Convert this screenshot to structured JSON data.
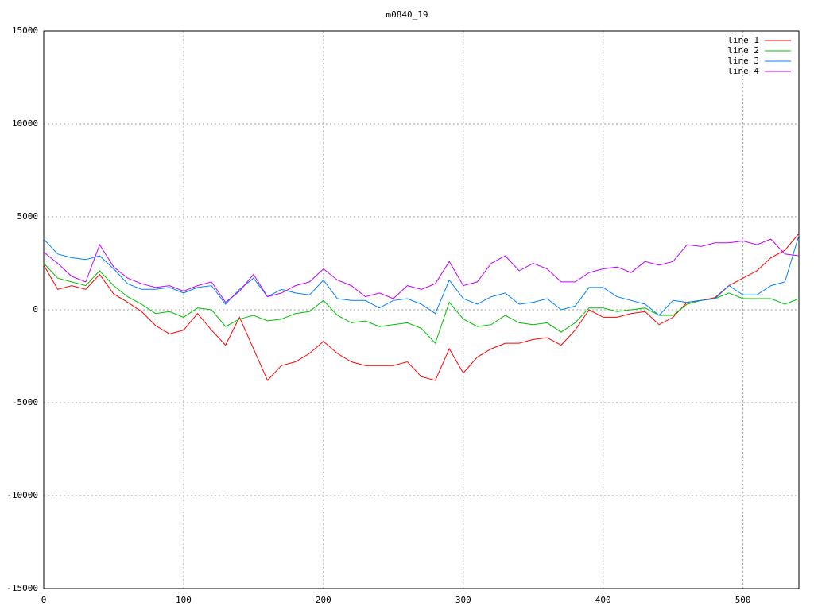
{
  "chart_data": {
    "type": "line",
    "title": "m0840_19",
    "x": [
      0,
      10,
      20,
      30,
      40,
      50,
      60,
      70,
      80,
      90,
      100,
      110,
      120,
      130,
      140,
      150,
      160,
      170,
      180,
      190,
      200,
      210,
      220,
      230,
      240,
      250,
      260,
      270,
      280,
      290,
      300,
      310,
      320,
      330,
      340,
      350,
      360,
      370,
      380,
      390,
      400,
      410,
      420,
      430,
      440,
      450,
      460,
      470,
      480,
      490,
      500,
      510,
      520,
      530,
      540
    ],
    "series": [
      {
        "name": "line 1",
        "color": "#ff0000",
        "values": [
          2400,
          1100,
          1300,
          1100,
          1900,
          850,
          400,
          -100,
          -850,
          -1300,
          -1100,
          -200,
          -1100,
          -1900,
          -400,
          -2100,
          -3800,
          -3000,
          -2800,
          -2350,
          -1700,
          -2350,
          -2800,
          -3000,
          -3000,
          -3000,
          -2800,
          -3600,
          -3800,
          -2100,
          -3400,
          -2550,
          -2100,
          -1800,
          -1800,
          -1600,
          -1500,
          -1900,
          -1100,
          0,
          -400,
          -400,
          -200,
          -100,
          -800,
          -400,
          400,
          500,
          650,
          1300,
          1700,
          2100,
          2800,
          3200,
          4100
        ]
      },
      {
        "name": "line 2",
        "color": "#00c000",
        "values": [
          2500,
          1700,
          1500,
          1300,
          2100,
          1300,
          700,
          300,
          -200,
          -100,
          -400,
          100,
          0,
          -900,
          -500,
          -300,
          -600,
          -500,
          -200,
          -100,
          500,
          -300,
          -700,
          -600,
          -900,
          -800,
          -700,
          -1000,
          -1800,
          400,
          -500,
          -900,
          -800,
          -300,
          -700,
          -800,
          -700,
          -1200,
          -700,
          100,
          100,
          -100,
          0,
          100,
          -300,
          -300,
          300,
          500,
          600,
          900,
          600,
          600,
          600,
          300,
          600
        ]
      },
      {
        "name": "line 3",
        "color": "#0080ff",
        "values": [
          3800,
          3000,
          2800,
          2700,
          2900,
          2200,
          1400,
          1100,
          1100,
          1200,
          900,
          1200,
          1300,
          300,
          1100,
          1700,
          700,
          1100,
          900,
          800,
          1600,
          600,
          500,
          500,
          100,
          500,
          600,
          300,
          -200,
          1600,
          600,
          300,
          700,
          900,
          300,
          400,
          600,
          0,
          200,
          1200,
          1200,
          700,
          500,
          300,
          -300,
          500,
          400,
          500,
          600,
          1300,
          800,
          800,
          1300,
          1500,
          4000
        ]
      },
      {
        "name": "line 4",
        "color": "#c000ff",
        "values": [
          3100,
          2500,
          1800,
          1500,
          3500,
          2300,
          1700,
          1400,
          1200,
          1300,
          1000,
          1300,
          1500,
          400,
          1000,
          1900,
          700,
          900,
          1300,
          1500,
          2200,
          1600,
          1300,
          700,
          900,
          600,
          1300,
          1100,
          1400,
          2600,
          1300,
          1500,
          2500,
          2900,
          2100,
          2500,
          2200,
          1500,
          1500,
          2000,
          2200,
          2300,
          2000,
          2600,
          2400,
          2600,
          3500,
          3400,
          3600,
          3600,
          3700,
          3500,
          3800,
          3000,
          2900
        ]
      }
    ],
    "xlim": [
      0,
      540
    ],
    "xticks": [
      0,
      100,
      200,
      300,
      400,
      500
    ],
    "ylim": [
      -15000,
      15000
    ],
    "yticks": [
      -15000,
      -10000,
      -5000,
      0,
      5000,
      10000,
      15000
    ],
    "grid": true,
    "legend": "top-right"
  }
}
